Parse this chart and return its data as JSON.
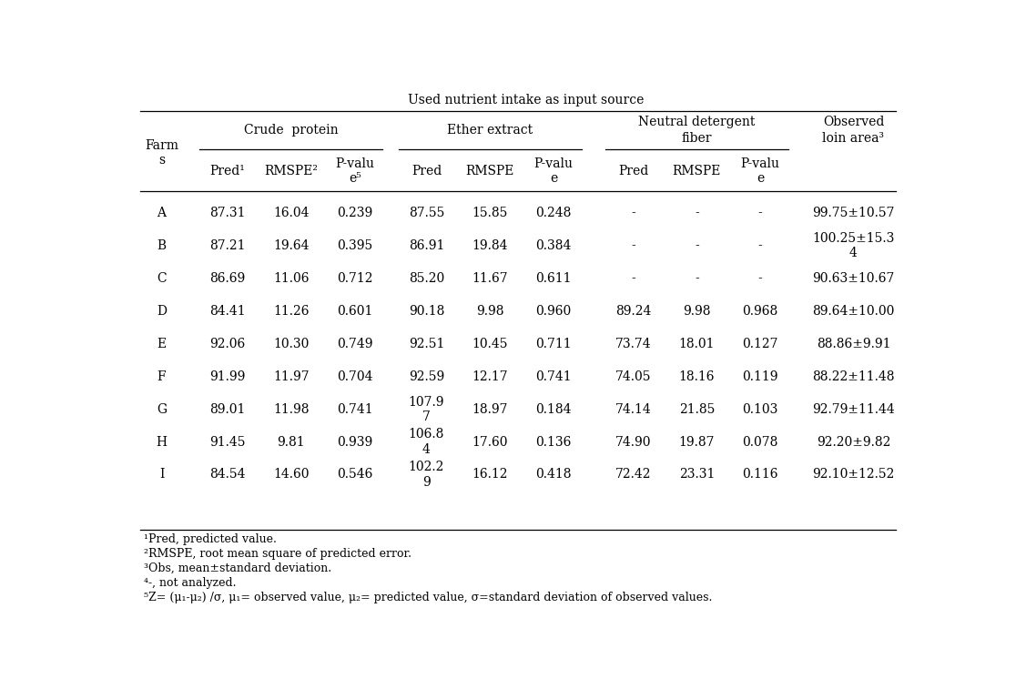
{
  "title": "Used nutrient intake as input source",
  "footnotes": [
    "¹Pred, predicted value.",
    "²RMSPE, root mean square of predicted error.",
    "³Obs, mean±standard deviation.",
    "⁴-, not analyzed.",
    "⁵Z= (μ₁-μ₂) /σ, μ₁= observed value, μ₂= predicted value, σ=standard deviation of observed values."
  ],
  "rows": [
    {
      "farm": "A",
      "cp_pred": "87.31",
      "cp_rmspe": "16.04",
      "cp_p": "0.239",
      "ee_pred": "87.55",
      "ee_rmspe": "15.85",
      "ee_p": "0.248",
      "ndf_pred": "-",
      "ndf_rmspe": "-",
      "ndf_p": "-",
      "obs": "99.75±10.57"
    },
    {
      "farm": "B",
      "cp_pred": "87.21",
      "cp_rmspe": "19.64",
      "cp_p": "0.395",
      "ee_pred": "86.91",
      "ee_rmspe": "19.84",
      "ee_p": "0.384",
      "ndf_pred": "-",
      "ndf_rmspe": "-",
      "ndf_p": "-",
      "obs": "100.25±15.3\n4"
    },
    {
      "farm": "C",
      "cp_pred": "86.69",
      "cp_rmspe": "11.06",
      "cp_p": "0.712",
      "ee_pred": "85.20",
      "ee_rmspe": "11.67",
      "ee_p": "0.611",
      "ndf_pred": "-",
      "ndf_rmspe": "-",
      "ndf_p": "-",
      "obs": "90.63±10.67"
    },
    {
      "farm": "D",
      "cp_pred": "84.41",
      "cp_rmspe": "11.26",
      "cp_p": "0.601",
      "ee_pred": "90.18",
      "ee_rmspe": "9.98",
      "ee_p": "0.960",
      "ndf_pred": "89.24",
      "ndf_rmspe": "9.98",
      "ndf_p": "0.968",
      "obs": "89.64±10.00"
    },
    {
      "farm": "E",
      "cp_pred": "92.06",
      "cp_rmspe": "10.30",
      "cp_p": "0.749",
      "ee_pred": "92.51",
      "ee_rmspe": "10.45",
      "ee_p": "0.711",
      "ndf_pred": "73.74",
      "ndf_rmspe": "18.01",
      "ndf_p": "0.127",
      "obs": "88.86±9.91"
    },
    {
      "farm": "F",
      "cp_pred": "91.99",
      "cp_rmspe": "11.97",
      "cp_p": "0.704",
      "ee_pred": "92.59",
      "ee_rmspe": "12.17",
      "ee_p": "0.741",
      "ndf_pred": "74.05",
      "ndf_rmspe": "18.16",
      "ndf_p": "0.119",
      "obs": "88.22±11.48"
    },
    {
      "farm": "G",
      "cp_pred": "89.01",
      "cp_rmspe": "11.98",
      "cp_p": "0.741",
      "ee_pred": "107.9\n7",
      "ee_rmspe": "18.97",
      "ee_p": "0.184",
      "ndf_pred": "74.14",
      "ndf_rmspe": "21.85",
      "ndf_p": "0.103",
      "obs": "92.79±11.44"
    },
    {
      "farm": "H",
      "cp_pred": "91.45",
      "cp_rmspe": "9.81",
      "cp_p": "0.939",
      "ee_pred": "106.8\n4",
      "ee_rmspe": "17.60",
      "ee_p": "0.136",
      "ndf_pred": "74.90",
      "ndf_rmspe": "19.87",
      "ndf_p": "0.078",
      "obs": "92.20±9.82"
    },
    {
      "farm": "I",
      "cp_pred": "84.54",
      "cp_rmspe": "14.60",
      "cp_p": "0.546",
      "ee_pred": "102.2\n9",
      "ee_rmspe": "16.12",
      "ee_p": "0.418",
      "ndf_pred": "72.42",
      "ndf_rmspe": "23.31",
      "ndf_p": "0.116",
      "obs": "92.10±12.52"
    }
  ],
  "bg_color": "#ffffff",
  "text_color": "#000000",
  "font_size": 10.0,
  "header_font_size": 10.0,
  "footnote_font_size": 9.0
}
